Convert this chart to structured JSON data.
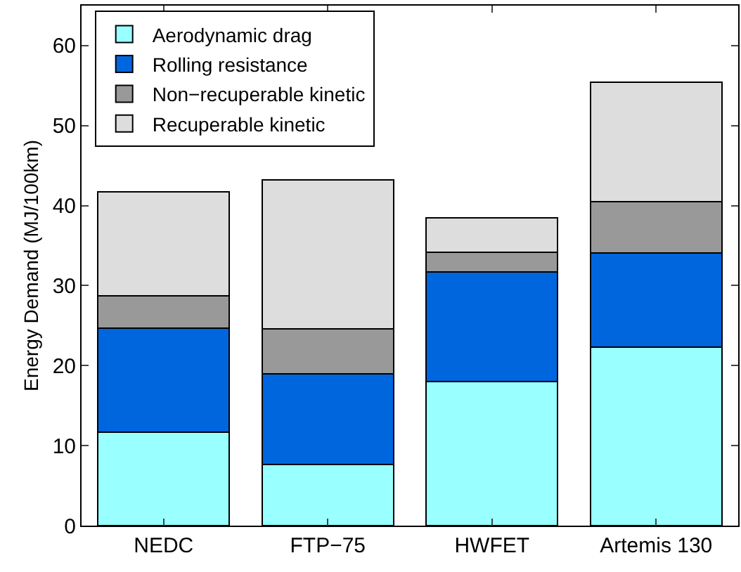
{
  "chart_data": {
    "type": "bar",
    "stacked": true,
    "ylabel": "Energy Demand (MJ/100km)",
    "categories": [
      "NEDC",
      "FTP−75",
      "HWFET",
      "Artemis 130"
    ],
    "series": [
      {
        "name": "Aerodynamic drag",
        "color": "#99ffff",
        "values": [
          11.7,
          7.6,
          18.0,
          22.3
        ]
      },
      {
        "name": "Rolling resistance",
        "color": "#0066dd",
        "values": [
          13.0,
          11.4,
          13.7,
          11.8
        ]
      },
      {
        "name": "Non−recuperable kinetic",
        "color": "#999999",
        "values": [
          4.0,
          5.6,
          2.5,
          6.4
        ]
      },
      {
        "name": "Recuperable kinetic",
        "color": "#dddddd",
        "values": [
          13.0,
          18.6,
          4.3,
          14.9
        ]
      }
    ],
    "ylim": [
      0,
      65
    ],
    "yticks": [
      0,
      10,
      20,
      30,
      40,
      50,
      60
    ],
    "grid": false,
    "legend": "top left"
  }
}
